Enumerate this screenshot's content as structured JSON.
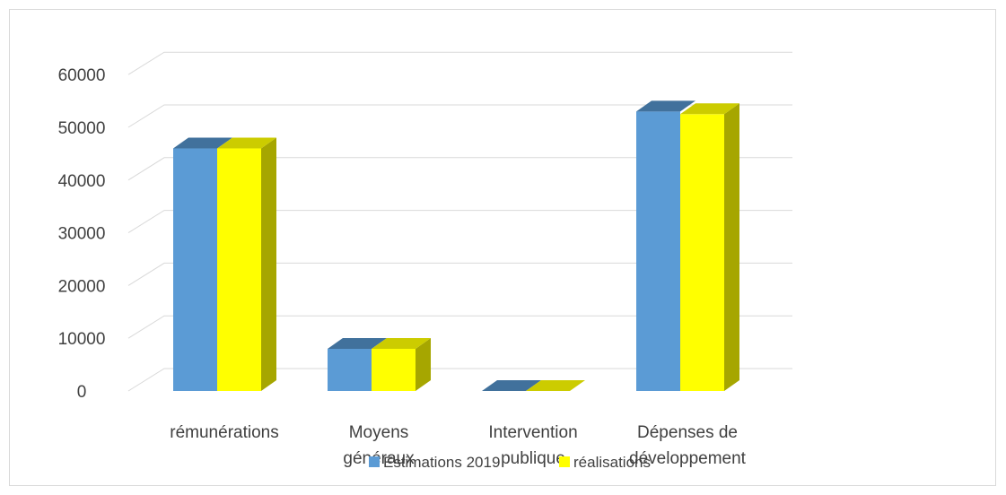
{
  "chart_data": {
    "type": "bar",
    "categories": [
      "rémunérations",
      "Moyens\ngénéraux",
      "Intervention\npublique",
      "Dépenses de\ndéveloppement"
    ],
    "series": [
      {
        "name": "Estimations 2019",
        "values": [
          46000,
          8000,
          0,
          53000
        ]
      },
      {
        "name": "réalisations",
        "values": [
          46000,
          8000,
          0,
          52500
        ]
      }
    ],
    "ylim": [
      0,
      60000
    ],
    "yticks": [
      0,
      10000,
      20000,
      30000,
      40000,
      50000,
      60000
    ],
    "ytick_labels": [
      "0",
      "10000",
      "20000",
      "30000",
      "40000",
      "50000",
      "60000"
    ],
    "grid": true,
    "legend_position": "bottom",
    "style": "3d-clustered-column",
    "colors": {
      "series_front": [
        "#5B9BD5",
        "#FFFF00"
      ],
      "series_top": [
        "#41719C",
        "#CCCC00"
      ],
      "series_side": [
        "#3E6D99",
        "#A6A600"
      ],
      "gridline": "#d9d9d9"
    }
  }
}
